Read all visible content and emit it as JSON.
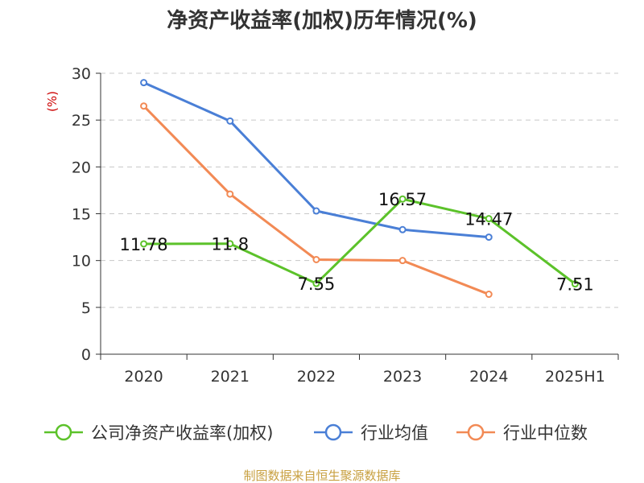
{
  "chart_data": {
    "type": "line",
    "title": "净资产收益率(加权)历年情况(%)",
    "ylabel": "(%)",
    "categories": [
      "2020",
      "2021",
      "2022",
      "2023",
      "2024",
      "2025H1"
    ],
    "ylim": [
      0,
      30
    ],
    "yticks": [
      0,
      5,
      10,
      15,
      20,
      25,
      30
    ],
    "grid": true,
    "legend_position": "bottom",
    "series": [
      {
        "name": "公司净资产收益率(加权)",
        "color": "#5cc22a",
        "values": [
          11.78,
          11.8,
          7.55,
          16.57,
          14.47,
          7.51
        ],
        "labels": [
          "11.78",
          "11.8",
          "7.55",
          "16.57",
          "14.47",
          "7.51"
        ]
      },
      {
        "name": "行业均值",
        "color": "#4a7fd6",
        "values": [
          29.0,
          24.9,
          15.3,
          13.3,
          12.5,
          null
        ]
      },
      {
        "name": "行业中位数",
        "color": "#f28a55",
        "values": [
          26.5,
          17.1,
          10.1,
          10.0,
          6.4,
          null
        ]
      }
    ]
  },
  "footer": {
    "source": "制图数据来自恒生聚源数据库"
  }
}
